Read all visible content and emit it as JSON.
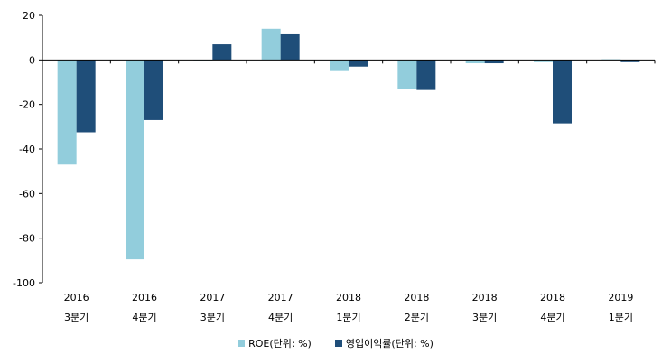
{
  "chart_data": {
    "type": "bar",
    "categories": [
      {
        "year": "2016",
        "quarter": "3분기"
      },
      {
        "year": "2016",
        "quarter": "4분기"
      },
      {
        "year": "2017",
        "quarter": "3분기"
      },
      {
        "year": "2017",
        "quarter": "4분기"
      },
      {
        "year": "2018",
        "quarter": "1분기"
      },
      {
        "year": "2018",
        "quarter": "2분기"
      },
      {
        "year": "2018",
        "quarter": "3분기"
      },
      {
        "year": "2018",
        "quarter": "4분기"
      },
      {
        "year": "2019",
        "quarter": "1분기"
      }
    ],
    "series": [
      {
        "name": "ROE(단위: %)",
        "color": "#92cddc",
        "values": [
          -47,
          -89.5,
          0,
          14,
          -5,
          -13,
          -1.5,
          -1,
          0.3
        ]
      },
      {
        "name": "영업이익률(단위: %)",
        "color": "#1f4e79",
        "values": [
          -32.5,
          -27,
          7,
          11.5,
          -3,
          -13.5,
          -1.5,
          -28.5,
          -1
        ]
      }
    ],
    "yticks": [
      20,
      0,
      -20,
      -40,
      -60,
      -80,
      -100
    ],
    "ylim": [
      -100,
      20
    ],
    "legend_position": "bottom"
  }
}
